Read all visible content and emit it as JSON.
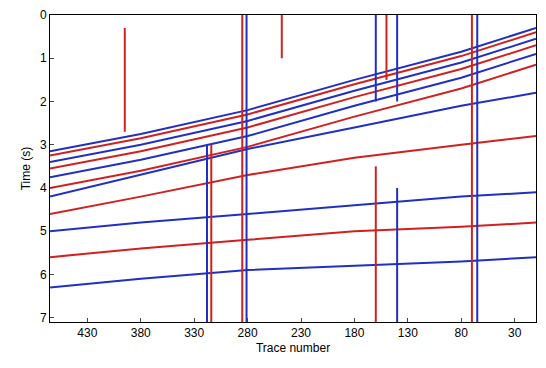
{
  "chart_data": {
    "type": "seismic",
    "x_label": "Trace number",
    "y_label": "Time (s)",
    "xlim": [
      465,
      10
    ],
    "ylim": [
      7.1,
      0
    ],
    "xticks": [
      430,
      380,
      330,
      280,
      230,
      180,
      130,
      80,
      30
    ],
    "yticks": [
      0,
      1,
      2,
      3,
      4,
      5,
      6,
      7
    ],
    "grid": false,
    "series": [
      {
        "color": "#2030c0",
        "x": [
          465,
          380,
          280,
          180,
          80,
          10
        ],
        "y": [
          3.15,
          2.75,
          2.2,
          1.5,
          0.85,
          0.3
        ]
      },
      {
        "color": "#d02020",
        "x": [
          465,
          380,
          280,
          180,
          80,
          10
        ],
        "y": [
          3.25,
          2.85,
          2.3,
          1.6,
          0.95,
          0.4
        ]
      },
      {
        "color": "#2030c0",
        "x": [
          465,
          380,
          280,
          180,
          80,
          10
        ],
        "y": [
          3.4,
          3.0,
          2.45,
          1.75,
          1.1,
          0.55
        ]
      },
      {
        "color": "#d02020",
        "x": [
          465,
          380,
          280,
          180,
          80,
          10
        ],
        "y": [
          3.55,
          3.15,
          2.6,
          1.9,
          1.25,
          0.7
        ]
      },
      {
        "color": "#2030c0",
        "x": [
          465,
          380,
          280,
          180,
          80,
          10
        ],
        "y": [
          3.75,
          3.35,
          2.8,
          2.1,
          1.45,
          0.9
        ]
      },
      {
        "color": "#d02020",
        "x": [
          465,
          380,
          280,
          180,
          80,
          10
        ],
        "y": [
          4.0,
          3.6,
          3.05,
          2.35,
          1.7,
          1.15
        ]
      },
      {
        "color": "#2030c0",
        "x": [
          465,
          380,
          280,
          180,
          80,
          10
        ],
        "y": [
          4.2,
          3.7,
          3.1,
          2.6,
          2.1,
          1.8
        ]
      },
      {
        "color": "#d02020",
        "x": [
          465,
          380,
          280,
          180,
          80,
          10
        ],
        "y": [
          4.6,
          4.2,
          3.7,
          3.3,
          3.0,
          2.8
        ]
      },
      {
        "color": "#2030c0",
        "x": [
          465,
          380,
          280,
          180,
          80,
          10
        ],
        "y": [
          5.0,
          4.8,
          4.6,
          4.4,
          4.2,
          4.1
        ]
      },
      {
        "color": "#d02020",
        "x": [
          465,
          380,
          280,
          180,
          80,
          10
        ],
        "y": [
          5.6,
          5.4,
          5.2,
          5.0,
          4.9,
          4.8
        ]
      },
      {
        "color": "#2030c0",
        "x": [
          465,
          380,
          280,
          180,
          80,
          10
        ],
        "y": [
          6.3,
          6.1,
          5.9,
          5.8,
          5.7,
          5.6
        ]
      },
      {
        "color": "#d02020",
        "x": [
          395,
          395
        ],
        "y": [
          0.3,
          2.7
        ]
      },
      {
        "color": "#2030c0",
        "x": [
          318,
          318
        ],
        "y": [
          3.0,
          7.1
        ]
      },
      {
        "color": "#d02020",
        "x": [
          314,
          314
        ],
        "y": [
          3.0,
          7.1
        ]
      },
      {
        "color": "#d02020",
        "x": [
          285,
          285
        ],
        "y": [
          0,
          7.1
        ]
      },
      {
        "color": "#2030c0",
        "x": [
          281,
          281
        ],
        "y": [
          0,
          7.1
        ]
      },
      {
        "color": "#d02020",
        "x": [
          248,
          248
        ],
        "y": [
          0,
          1
        ]
      },
      {
        "color": "#2030c0",
        "x": [
          160,
          160
        ],
        "y": [
          0,
          2
        ]
      },
      {
        "color": "#d02020",
        "x": [
          150,
          150
        ],
        "y": [
          0,
          1.5
        ]
      },
      {
        "color": "#2030c0",
        "x": [
          140,
          140
        ],
        "y": [
          0,
          2
        ]
      },
      {
        "color": "#d02020",
        "x": [
          160,
          160
        ],
        "y": [
          3.5,
          7.1
        ]
      },
      {
        "color": "#2030c0",
        "x": [
          140,
          140
        ],
        "y": [
          4.0,
          7.1
        ]
      },
      {
        "color": "#d02020",
        "x": [
          70,
          70
        ],
        "y": [
          0,
          7.1
        ]
      },
      {
        "color": "#2030c0",
        "x": [
          65,
          65
        ],
        "y": [
          0,
          7.1
        ]
      }
    ]
  }
}
